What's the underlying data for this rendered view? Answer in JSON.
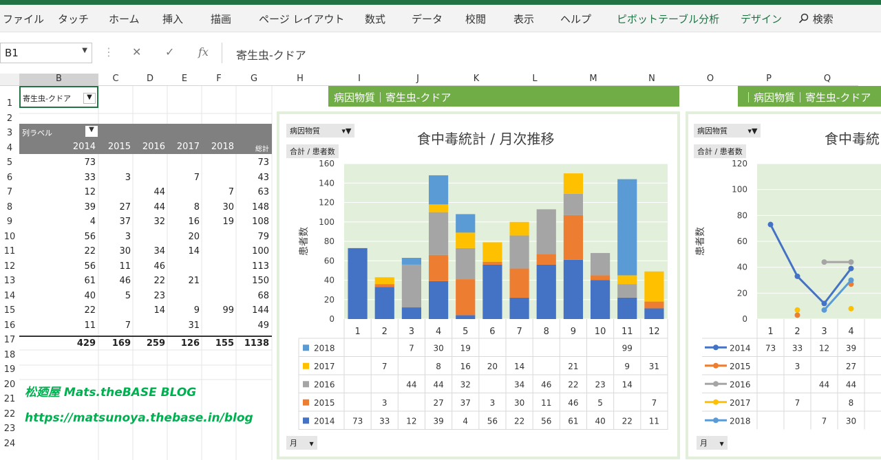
{
  "ribbon": {
    "tabs": [
      "ファイル",
      "タッチ",
      "ホーム",
      "挿入",
      "描画",
      "ページ レイアウト",
      "数式",
      "データ",
      "校閲",
      "表示",
      "ヘルプ",
      "ピボットテーブル分析",
      "デザイン"
    ],
    "search_label": "検索"
  },
  "formula_bar": {
    "name_box": "B1",
    "value": "寄生虫-クドア",
    "cancel": "✕",
    "enter": "✓",
    "fx": "fx"
  },
  "columns": [
    "B",
    "C",
    "D",
    "E",
    "F",
    "G",
    "H",
    "I",
    "J",
    "K",
    "L",
    "M",
    "N",
    "O",
    "P",
    "Q"
  ],
  "rows": [
    "1",
    "2",
    "3",
    "4",
    "5",
    "6",
    "7",
    "8",
    "9",
    "10",
    "11",
    "12",
    "13",
    "14",
    "15",
    "16",
    "17",
    "18",
    "19",
    "20",
    "21",
    "22",
    "23",
    "24"
  ],
  "pivot": {
    "filter_value": "寄生虫-クドア",
    "col_label": "列ラベル",
    "years": [
      "2014",
      "2015",
      "2016",
      "2017",
      "2018",
      "総計"
    ],
    "rows": [
      [
        "73",
        "",
        "",
        "",
        "",
        "73"
      ],
      [
        "33",
        "3",
        "",
        "7",
        "",
        "43"
      ],
      [
        "12",
        "",
        "44",
        "",
        "7",
        "63"
      ],
      [
        "39",
        "27",
        "44",
        "8",
        "30",
        "148"
      ],
      [
        "4",
        "37",
        "32",
        "16",
        "19",
        "108"
      ],
      [
        "56",
        "3",
        "",
        "20",
        "",
        "79"
      ],
      [
        "22",
        "30",
        "34",
        "14",
        "",
        "100"
      ],
      [
        "56",
        "11",
        "46",
        "",
        "",
        "113"
      ],
      [
        "61",
        "46",
        "22",
        "21",
        "",
        "150"
      ],
      [
        "40",
        "5",
        "23",
        "",
        "",
        "68"
      ],
      [
        "22",
        "",
        "14",
        "9",
        "99",
        "144"
      ],
      [
        "11",
        "7",
        "",
        "31",
        "",
        "49"
      ]
    ],
    "totals": [
      "429",
      "169",
      "259",
      "126",
      "155",
      "1138"
    ]
  },
  "green_header_1": "病因物質｜寄生虫-クドア",
  "green_header_2": "｜病因物質｜寄生虫-クドア",
  "brand_line1": "松廼屋 Mats.theBASE BLOG",
  "brand_line2": "https://matsunoya.thebase.in/blog",
  "chart1": {
    "filter_button": "病因物質",
    "value_button": "合計 / 患者数",
    "axis_button": "月",
    "title": "食中毒統計 / 月次推移",
    "ylabel": "患者数"
  },
  "chart2": {
    "filter_button": "病因物質",
    "value_button": "合計 / 患者数",
    "axis_button": "月",
    "title": "食中毒統",
    "ylabel": "患者数"
  },
  "colors": {
    "2014": "#4472c4",
    "2015": "#ed7d31",
    "2016": "#a5a5a5",
    "2017": "#ffc000",
    "2018": "#5b9bd5"
  },
  "chart_data": [
    {
      "type": "bar",
      "stacked": true,
      "title": "食中毒統計 / 月次推移",
      "ylabel": "患者数",
      "ylim": [
        0,
        160
      ],
      "yticks": [
        0,
        20,
        40,
        60,
        80,
        100,
        120,
        140,
        160
      ],
      "categories": [
        "1",
        "2",
        "3",
        "4",
        "5",
        "6",
        "7",
        "8",
        "9",
        "10",
        "11",
        "12"
      ],
      "series": [
        {
          "name": "2014",
          "values": [
            73,
            33,
            12,
            39,
            4,
            56,
            22,
            56,
            61,
            40,
            22,
            11
          ]
        },
        {
          "name": "2015",
          "values": [
            null,
            3,
            null,
            27,
            37,
            3,
            30,
            11,
            46,
            5,
            null,
            7
          ]
        },
        {
          "name": "2016",
          "values": [
            null,
            null,
            44,
            44,
            32,
            null,
            34,
            46,
            22,
            23,
            14,
            null
          ]
        },
        {
          "name": "2017",
          "values": [
            null,
            7,
            null,
            8,
            16,
            20,
            14,
            null,
            21,
            null,
            9,
            31
          ]
        },
        {
          "name": "2018",
          "values": [
            null,
            null,
            7,
            30,
            19,
            null,
            null,
            null,
            null,
            null,
            99,
            null
          ]
        }
      ],
      "data_table": true,
      "grid": true
    },
    {
      "type": "line",
      "title": "食中毒統",
      "ylabel": "患者数",
      "ylim": [
        0,
        120
      ],
      "yticks": [
        0,
        20,
        40,
        60,
        80,
        100,
        120
      ],
      "categories": [
        "1",
        "2",
        "3",
        "4"
      ],
      "series": [
        {
          "name": "2014",
          "values": [
            73,
            33,
            12,
            39
          ]
        },
        {
          "name": "2015",
          "values": [
            null,
            3,
            null,
            27
          ]
        },
        {
          "name": "2016",
          "values": [
            null,
            null,
            44,
            44
          ]
        },
        {
          "name": "2017",
          "values": [
            null,
            7,
            null,
            8
          ]
        },
        {
          "name": "2018",
          "values": [
            null,
            null,
            7,
            30
          ]
        }
      ],
      "data_table": true,
      "grid": true
    }
  ]
}
